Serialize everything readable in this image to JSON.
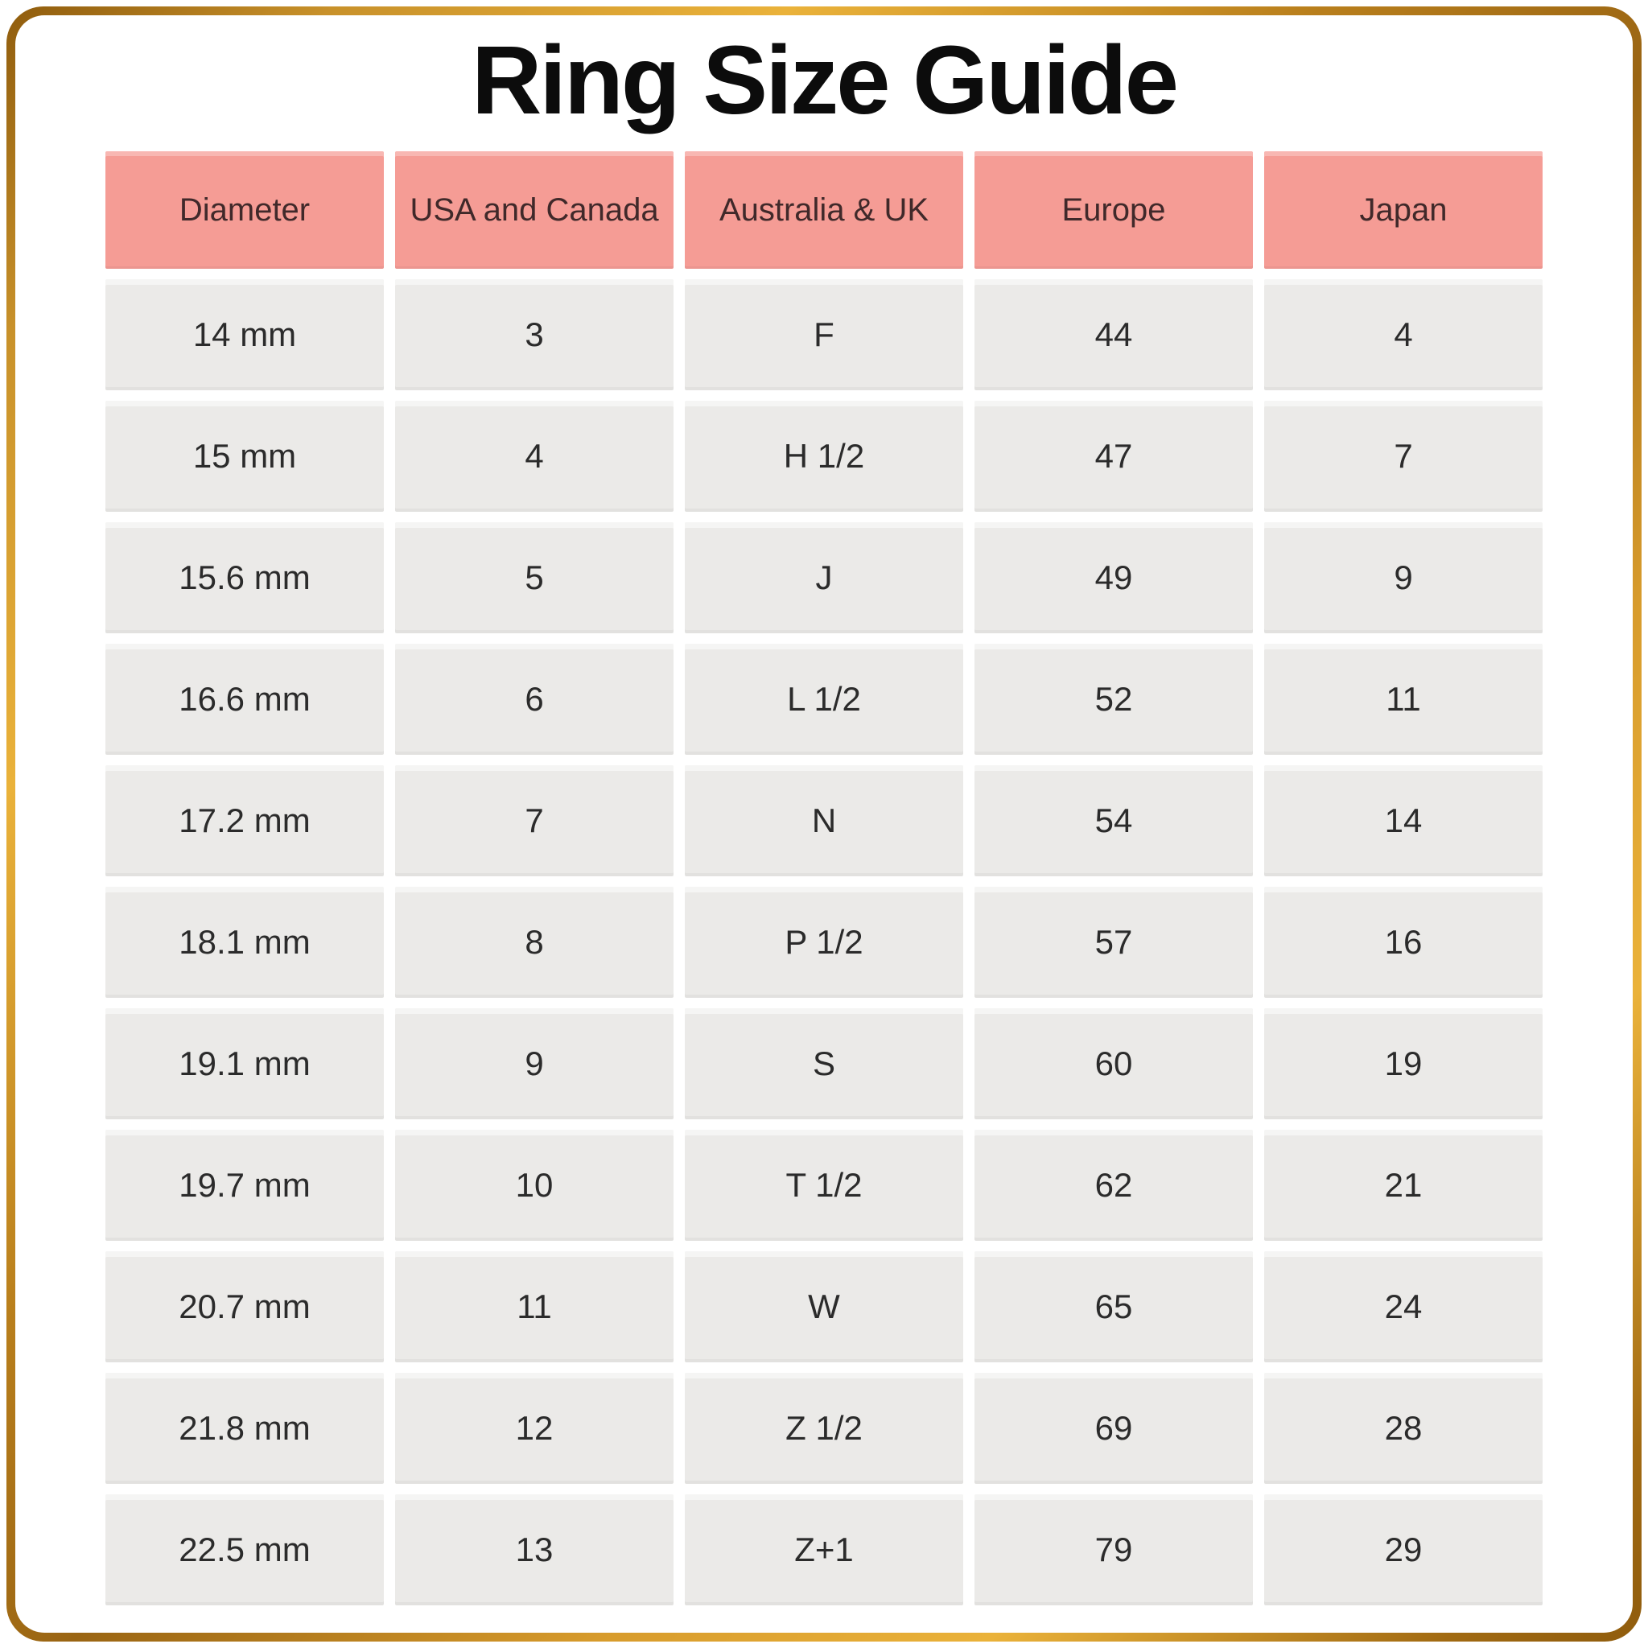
{
  "title": "Ring Size Guide",
  "theme": {
    "frame_gold_dark": "#8f5c0d",
    "frame_gold_light": "#eab23a",
    "header_bg": "#f59c95",
    "header_text": "#40292a",
    "cell_bg": "#ebeae8",
    "cell_text": "#2b2b2b",
    "background": "#ffffff"
  },
  "chart_data": {
    "type": "table",
    "title": "Ring Size Guide",
    "columns": [
      "Diameter",
      "USA and Canada",
      "Australia & UK",
      "Europe",
      "Japan"
    ],
    "rows": [
      [
        "14 mm",
        "3",
        "F",
        "44",
        "4"
      ],
      [
        "15 mm",
        "4",
        "H 1/2",
        "47",
        "7"
      ],
      [
        "15.6 mm",
        "5",
        "J",
        "49",
        "9"
      ],
      [
        "16.6 mm",
        "6",
        "L 1/2",
        "52",
        "11"
      ],
      [
        "17.2 mm",
        "7",
        "N",
        "54",
        "14"
      ],
      [
        "18.1 mm",
        "8",
        "P 1/2",
        "57",
        "16"
      ],
      [
        "19.1 mm",
        "9",
        "S",
        "60",
        "19"
      ],
      [
        "19.7 mm",
        "10",
        "T 1/2",
        "62",
        "21"
      ],
      [
        "20.7 mm",
        "11",
        "W",
        "65",
        "24"
      ],
      [
        "21.8 mm",
        "12",
        "Z 1/2",
        "69",
        "28"
      ],
      [
        "22.5 mm",
        "13",
        "Z+1",
        "79",
        "29"
      ]
    ]
  }
}
